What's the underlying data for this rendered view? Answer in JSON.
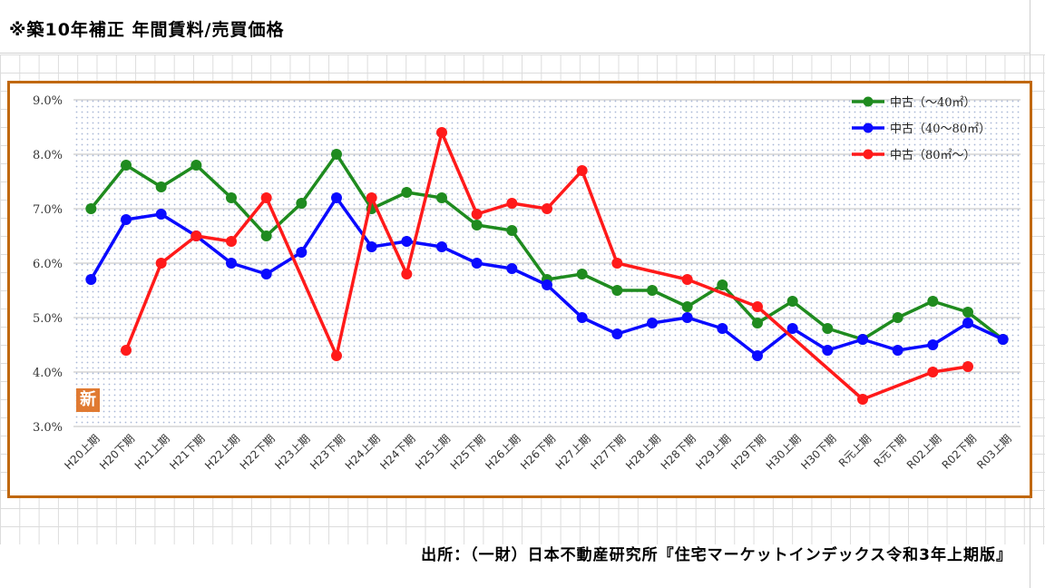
{
  "page": {
    "title": "※築10年補正 年間賃料/売買価格",
    "source": "出所：（一財）日本不動産研究所『住宅マーケットインデックス令和3年上期版』"
  },
  "colors": {
    "frame": "#c0680e",
    "series": [
      "#1f8b1f",
      "#0a0aff",
      "#ff1a1a"
    ]
  },
  "badge_text": "新",
  "chart_data": {
    "type": "line",
    "title": "",
    "xlabel": "",
    "ylabel": "",
    "ylim": [
      3.0,
      9.0
    ],
    "y_ticks": [
      "3.0%",
      "4.0%",
      "5.0%",
      "6.0%",
      "7.0%",
      "8.0%",
      "9.0%"
    ],
    "y_tick_values": [
      3,
      4,
      5,
      6,
      7,
      8,
      9
    ],
    "grid": true,
    "legend_position": "top-right",
    "categories": [
      "H20上期",
      "H20下期",
      "H21上期",
      "H21下期",
      "H22上期",
      "H22下期",
      "H23上期",
      "H23下期",
      "H24上期",
      "H24下期",
      "H25上期",
      "H25下期",
      "H26上期",
      "H26下期",
      "H27上期",
      "H27下期",
      "H28上期",
      "H28下期",
      "H29上期",
      "H29下期",
      "H30上期",
      "H30下期",
      "R元上期",
      "R元下期",
      "R02上期",
      "R02下期",
      "R03上期"
    ],
    "series": [
      {
        "name": "中古（～40㎡）",
        "values": [
          7.0,
          7.8,
          7.4,
          7.8,
          7.2,
          6.5,
          7.1,
          8.0,
          7.0,
          7.3,
          7.2,
          6.7,
          6.6,
          5.7,
          5.8,
          5.5,
          5.5,
          5.2,
          5.6,
          4.9,
          5.3,
          4.8,
          4.6,
          5.0,
          5.3,
          5.1,
          4.6
        ]
      },
      {
        "name": "中古（40～80㎡）",
        "values": [
          5.7,
          6.8,
          6.9,
          6.5,
          6.0,
          5.8,
          6.2,
          7.2,
          6.3,
          6.4,
          6.3,
          6.0,
          5.9,
          5.6,
          5.0,
          4.7,
          4.9,
          5.0,
          4.8,
          4.3,
          4.8,
          4.4,
          4.6,
          4.4,
          4.5,
          4.9,
          4.6
        ]
      },
      {
        "name": "中古（80㎡～）",
        "values": [
          null,
          4.4,
          6.0,
          6.5,
          6.4,
          7.2,
          null,
          4.3,
          7.2,
          5.8,
          8.4,
          6.9,
          7.1,
          7.0,
          7.7,
          6.0,
          null,
          5.7,
          null,
          5.2,
          null,
          null,
          3.5,
          null,
          4.0,
          4.1,
          null
        ]
      }
    ]
  }
}
